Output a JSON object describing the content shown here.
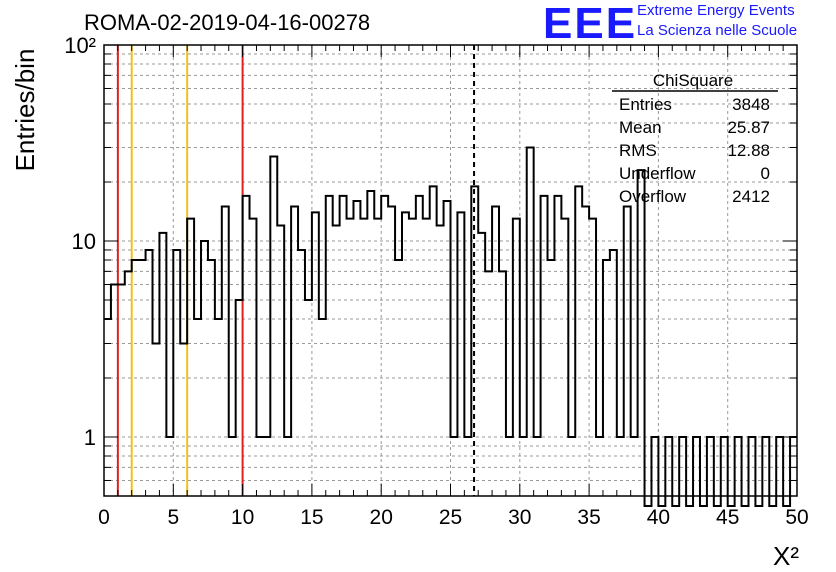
{
  "header": {
    "run_title": "ROMA-02-2019-04-16-00278",
    "logo_text": "EEE",
    "logo_line1": "Extreme Energy Events",
    "logo_line2": "La Scienza nelle Scuole"
  },
  "stats": {
    "title": "ChiSquare",
    "rows": [
      {
        "label": "Entries",
        "value": "3848"
      },
      {
        "label": "Mean",
        "value": "25.87"
      },
      {
        "label": "RMS",
        "value": "12.88"
      },
      {
        "label": "Underflow",
        "value": "0"
      },
      {
        "label": "Overflow",
        "value": "2412"
      }
    ]
  },
  "chart_data": {
    "type": "histogram",
    "ylabel": "Entries/bin",
    "xlabel": "X²",
    "xlim": [
      0,
      50
    ],
    "ylim": [
      0.5,
      100
    ],
    "yscale": "log",
    "bin_width": 0.5,
    "x_ticks": [
      "0",
      "5",
      "10",
      "15",
      "20",
      "25",
      "30",
      "35",
      "40",
      "45",
      "50"
    ],
    "y_ticks": [
      {
        "value": 1,
        "label": "1"
      },
      {
        "value": 10,
        "label": "10"
      },
      {
        "value": 100,
        "label": "10²"
      }
    ],
    "values": [
      4,
      6,
      6,
      7,
      8,
      8,
      9,
      3,
      11,
      1,
      9,
      3,
      13,
      4,
      10,
      8,
      4,
      15,
      1,
      5,
      17,
      13,
      1,
      1,
      27,
      12,
      1,
      15,
      9,
      5,
      14,
      4,
      17,
      12,
      17,
      13,
      16,
      13,
      18,
      13,
      17,
      15,
      8,
      14,
      13,
      17,
      13,
      19,
      12,
      16,
      1,
      14,
      1,
      19,
      11,
      7,
      15,
      7,
      1,
      13,
      1,
      30,
      1,
      17,
      8,
      17,
      13,
      1,
      19,
      15,
      13,
      1,
      8,
      9,
      1,
      15,
      1,
      23,
      0,
      1,
      0,
      1,
      0,
      1,
      0,
      1,
      0,
      1,
      0,
      1,
      0,
      1,
      0,
      1,
      0,
      1,
      0,
      1,
      0,
      1
    ],
    "reference_lines": [
      {
        "x": 1,
        "color": "#e02020",
        "style": "solid"
      },
      {
        "x": 2,
        "color": "#f0c020",
        "style": "solid"
      },
      {
        "x": 6,
        "color": "#f0c020",
        "style": "solid"
      },
      {
        "x": 10,
        "color": "#e02020",
        "style": "solid"
      },
      {
        "x": 26.7,
        "color": "#000000",
        "style": "dashed"
      }
    ],
    "grid": true
  }
}
